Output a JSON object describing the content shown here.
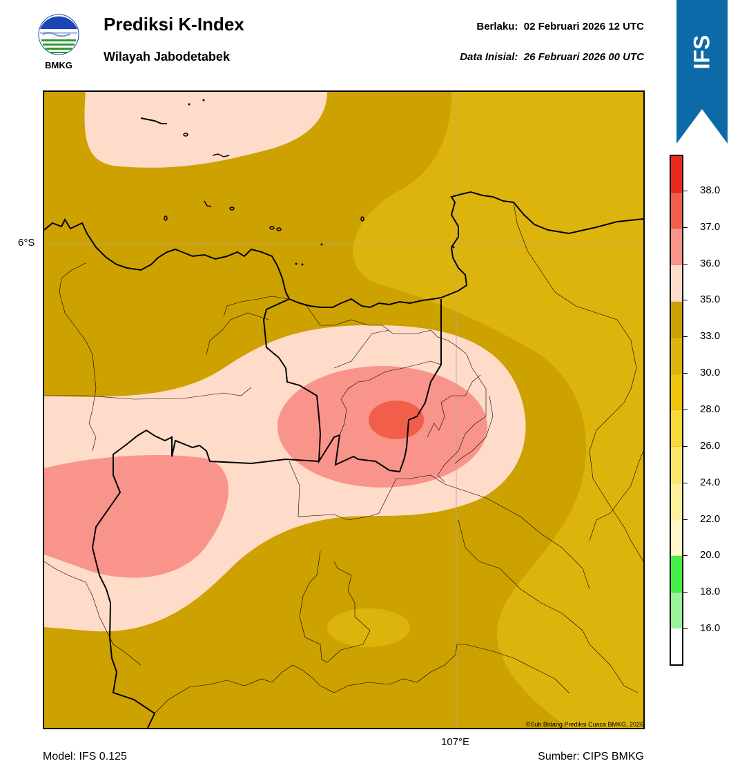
{
  "header": {
    "agency": "BMKG",
    "title": "Prediksi K-Index",
    "subtitle": "Wilayah Jabodetabek",
    "valid_label": "Berlaku:",
    "valid_time": "02 Februari 2026 12 UTC",
    "init_label": "Data Inisial:",
    "init_time": "26 Februari 2026 00 UTC",
    "model_badge": "IFS"
  },
  "map": {
    "lat_label": "6°S",
    "lon_label": "107°E",
    "credit": "©Sub Bidang Prediksi Cuaca BMKG, 2026"
  },
  "footer": {
    "model": "Model: IFS 0.125",
    "source": "Sumber: CIPS BMKG"
  },
  "legend": {
    "labels": [
      "38.0",
      "37.0",
      "36.0",
      "35.0",
      "33.0",
      "30.0",
      "28.0",
      "26.0",
      "24.0",
      "22.0",
      "20.0",
      "18.0",
      "16.0"
    ],
    "colors_top_to_bottom": [
      "#e8291c",
      "#f15e49",
      "#f9948a",
      "#ffdbc9",
      "#cca100",
      "#ddb40c",
      "#eec50c",
      "#f8d93a",
      "#fce66c",
      "#fff19b",
      "#fff8c9",
      "#44ee44",
      "#9af59a",
      "#ffffff"
    ]
  },
  "fields": {
    "k_index_levels": {
      "max_center": 38.0,
      "outer_background": 33.0
    }
  }
}
